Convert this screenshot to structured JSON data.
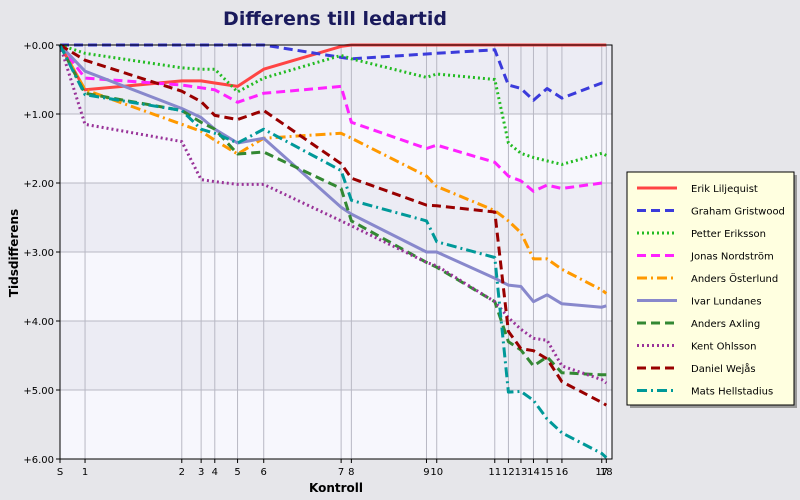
{
  "chart_data": {
    "type": "line",
    "title": "Differens till ledartid",
    "xlabel": "Kontroll",
    "ylabel": "Tidsdifferens",
    "x_ticks": [
      "S",
      "1",
      "2",
      "3",
      "4",
      "5",
      "6",
      "7",
      "8",
      "9",
      "10",
      "11",
      "12",
      "13",
      "14",
      "15",
      "16",
      "17",
      "18"
    ],
    "x_tick_positions": [
      0,
      2.2,
      10.7,
      12.4,
      13.6,
      15.6,
      17.9,
      24.7,
      25.6,
      32.2,
      33.1,
      38.2,
      39.4,
      40.5,
      41.6,
      42.8,
      44.1,
      47.6,
      48.0
    ],
    "x_range": [
      0,
      48.5
    ],
    "y_ticks": [
      "+0.00",
      "+1.00",
      "+2.00",
      "+3.00",
      "+4.00",
      "+5.00",
      "+6.00"
    ],
    "y_range": [
      0,
      6
    ],
    "y_inverted": true,
    "grid": true,
    "legend_position": "right",
    "series": [
      {
        "name": "Erik Liljequist",
        "color": "#ff4444",
        "dash": "solid",
        "y": [
          0,
          0.65,
          0.52,
          0.52,
          0.55,
          0.6,
          0.35,
          0.02,
          0,
          0,
          0,
          0,
          0,
          0,
          0,
          0,
          0,
          0,
          0
        ]
      },
      {
        "name": "Graham Gristwood",
        "color": "#3b3bdb",
        "dash": "dash",
        "y": [
          0,
          0,
          0,
          0,
          0,
          0,
          0,
          0.18,
          0.2,
          0.13,
          0.12,
          0.07,
          0.58,
          0.63,
          0.8,
          0.63,
          0.77,
          0.55,
          0.55
        ]
      },
      {
        "name": "Petter Eriksson",
        "color": "#22bb22",
        "dash": "dot",
        "y": [
          0,
          0.12,
          0.33,
          0.35,
          0.35,
          0.68,
          0.48,
          0.15,
          0.2,
          0.47,
          0.42,
          0.5,
          1.42,
          1.57,
          1.63,
          1.68,
          1.73,
          1.57,
          1.6
        ]
      },
      {
        "name": "Jonas Nordström",
        "color": "#ff22ff",
        "dash": "dash",
        "y": [
          0,
          0.48,
          0.58,
          0.62,
          0.65,
          0.83,
          0.7,
          0.6,
          1.12,
          1.5,
          1.45,
          1.7,
          1.9,
          1.97,
          2.12,
          2.03,
          2.08,
          2.0,
          2.0
        ]
      },
      {
        "name": "Anders Österlund",
        "color": "#ff9900",
        "dash": "dashdot",
        "y": [
          0,
          0.65,
          1.15,
          1.25,
          1.38,
          1.58,
          1.35,
          1.28,
          1.35,
          1.9,
          2.05,
          2.4,
          2.55,
          2.72,
          3.1,
          3.1,
          3.25,
          3.55,
          3.6
        ]
      },
      {
        "name": "Ivar Lundanes",
        "color": "#8888cc",
        "dash": "solid",
        "y": [
          0,
          0.38,
          0.92,
          1.05,
          1.22,
          1.42,
          1.35,
          2.35,
          2.45,
          3.0,
          3.0,
          3.38,
          3.48,
          3.5,
          3.72,
          3.62,
          3.75,
          3.8,
          3.78
        ]
      },
      {
        "name": "Anders Axling",
        "color": "#338833",
        "dash": "dash",
        "y": [
          0,
          0.7,
          0.95,
          1.12,
          1.22,
          1.58,
          1.55,
          2.08,
          2.55,
          3.15,
          3.22,
          3.72,
          4.3,
          4.42,
          4.65,
          4.52,
          4.75,
          4.78,
          4.78
        ]
      },
      {
        "name": "Kent Ohlsson",
        "color": "#993399",
        "dash": "dot",
        "y": [
          0,
          1.15,
          1.4,
          1.95,
          1.98,
          2.02,
          2.02,
          2.55,
          2.62,
          3.15,
          3.2,
          3.72,
          3.95,
          4.12,
          4.25,
          4.28,
          4.65,
          4.85,
          4.9
        ]
      },
      {
        "name": "Daniel Wejås",
        "color": "#990000",
        "dash": "dash",
        "y": [
          0,
          0.22,
          0.67,
          0.82,
          1.02,
          1.08,
          0.95,
          1.72,
          1.93,
          2.32,
          2.33,
          2.42,
          4.15,
          4.4,
          4.43,
          4.55,
          4.88,
          5.18,
          5.22
        ]
      },
      {
        "name": "Mats Hellstadius",
        "color": "#009999",
        "dash": "dashdot",
        "y": [
          0,
          0.72,
          0.95,
          1.22,
          1.28,
          1.42,
          1.22,
          1.82,
          2.25,
          2.55,
          2.85,
          3.08,
          5.03,
          5.02,
          5.15,
          5.42,
          5.62,
          5.92,
          5.98
        ]
      }
    ]
  }
}
